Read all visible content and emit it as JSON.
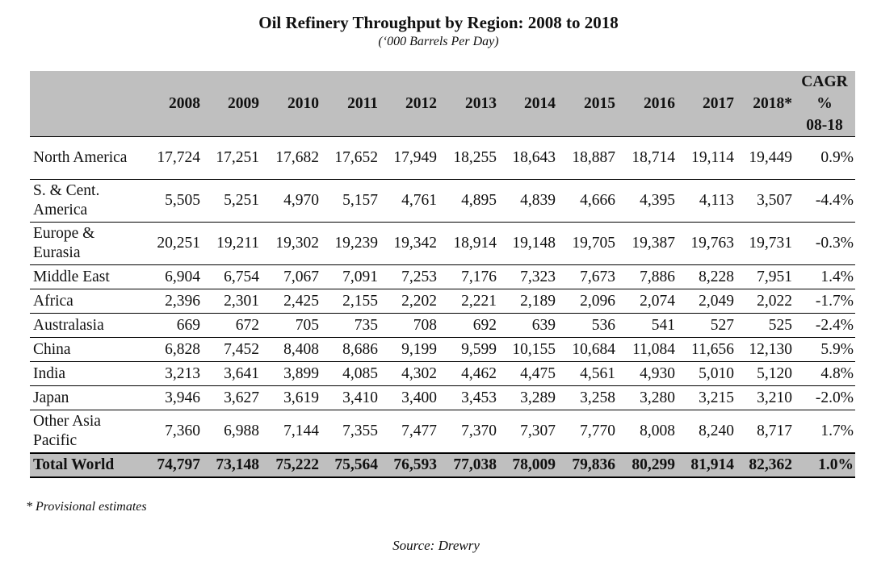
{
  "title": "Oil Refinery Throughput by Region: 2008 to 2018",
  "subtitle": "(‘000 Barrels Per Day)",
  "table": {
    "year_headers": [
      "2008",
      "2009",
      "2010",
      "2011",
      "2012",
      "2013",
      "2014",
      "2015",
      "2016",
      "2017",
      "2018*"
    ],
    "cagr_header": [
      "CAGR",
      "%",
      "08-18"
    ],
    "rows": [
      {
        "region": "North America",
        "values": [
          "17,724",
          "17,251",
          "17,682",
          "17,652",
          "17,949",
          "18,255",
          "18,643",
          "18,887",
          "18,714",
          "19,114",
          "19,449"
        ],
        "cagr": "0.9%"
      },
      {
        "region": "S. & Cent. America",
        "values": [
          "5,505",
          "5,251",
          "4,970",
          "5,157",
          "4,761",
          "4,895",
          "4,839",
          "4,666",
          "4,395",
          "4,113",
          "3,507"
        ],
        "cagr": "-4.4%"
      },
      {
        "region": "Europe & Eurasia",
        "values": [
          "20,251",
          "19,211",
          "19,302",
          "19,239",
          "19,342",
          "18,914",
          "19,148",
          "19,705",
          "19,387",
          "19,763",
          "19,731"
        ],
        "cagr": "-0.3%"
      },
      {
        "region": "Middle East",
        "values": [
          "6,904",
          "6,754",
          "7,067",
          "7,091",
          "7,253",
          "7,176",
          "7,323",
          "7,673",
          "7,886",
          "8,228",
          "7,951"
        ],
        "cagr": "1.4%"
      },
      {
        "region": "Africa",
        "values": [
          "2,396",
          "2,301",
          "2,425",
          "2,155",
          "2,202",
          "2,221",
          "2,189",
          "2,096",
          "2,074",
          "2,049",
          "2,022"
        ],
        "cagr": "-1.7%"
      },
      {
        "region": "Australasia",
        "values": [
          "669",
          "672",
          "705",
          "735",
          "708",
          "692",
          "639",
          "536",
          "541",
          "527",
          "525"
        ],
        "cagr": "-2.4%"
      },
      {
        "region": "China",
        "values": [
          "6,828",
          "7,452",
          "8,408",
          "8,686",
          "9,199",
          "9,599",
          "10,155",
          "10,684",
          "11,084",
          "11,656",
          "12,130"
        ],
        "cagr": "5.9%"
      },
      {
        "region": "India",
        "values": [
          "3,213",
          "3,641",
          "3,899",
          "4,085",
          "4,302",
          "4,462",
          "4,475",
          "4,561",
          "4,930",
          "5,010",
          "5,120"
        ],
        "cagr": "4.8%"
      },
      {
        "region": "Japan",
        "values": [
          "3,946",
          "3,627",
          "3,619",
          "3,410",
          "3,400",
          "3,453",
          "3,289",
          "3,258",
          "3,280",
          "3,215",
          "3,210"
        ],
        "cagr": "-2.0%"
      },
      {
        "region": "Other Asia Pacific",
        "values": [
          "7,360",
          "6,988",
          "7,144",
          "7,355",
          "7,477",
          "7,370",
          "7,307",
          "7,770",
          "8,008",
          "8,240",
          "8,717"
        ],
        "cagr": "1.7%"
      }
    ],
    "total": {
      "region": "Total World",
      "values": [
        "74,797",
        "73,148",
        "75,222",
        "75,564",
        "76,593",
        "77,038",
        "78,009",
        "79,836",
        "80,299",
        "81,914",
        "82,362"
      ],
      "cagr": "1.0%"
    }
  },
  "footnote": "* Provisional estimates",
  "source": "Source: Drewry"
}
